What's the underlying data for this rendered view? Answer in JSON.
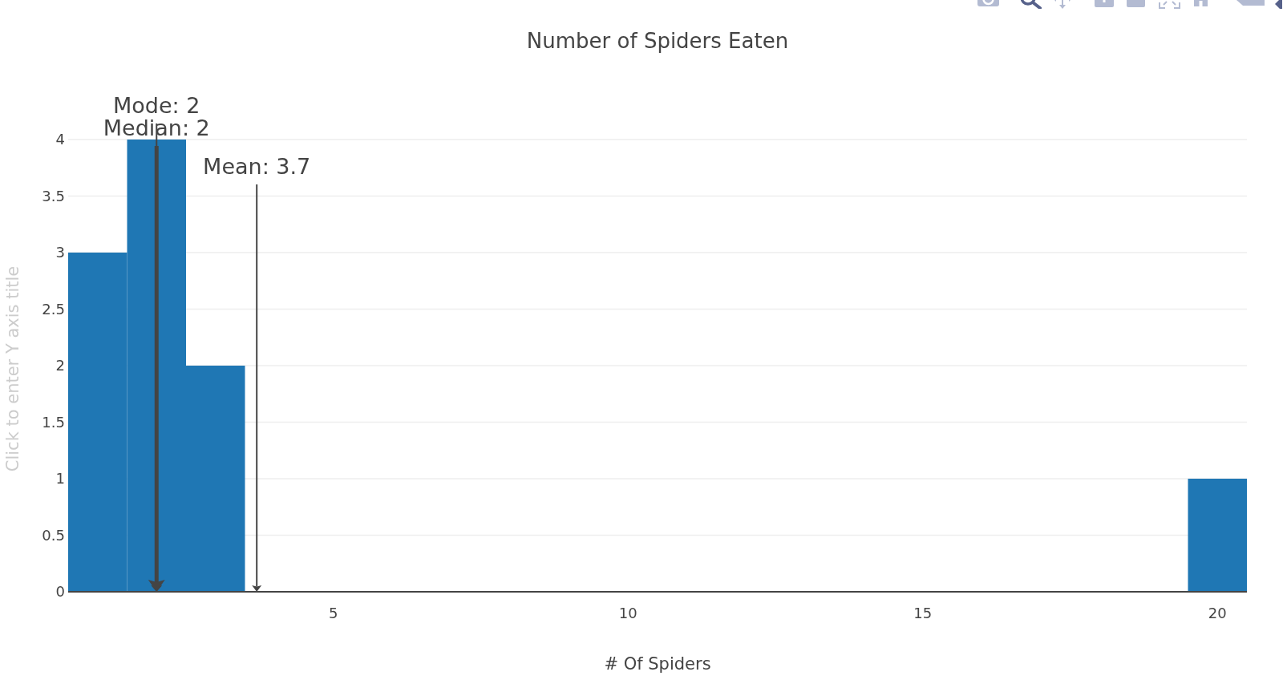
{
  "chart_data": {
    "type": "histogram",
    "title": "Number of Spiders Eaten",
    "xlabel": "# Of Spiders",
    "ylabel": "Click to enter Y axis title",
    "bins": [
      0.5,
      1.5,
      2.5,
      3.5,
      4.5,
      5.5,
      6.5,
      7.5,
      8.5,
      9.5,
      10.5,
      11.5,
      12.5,
      13.5,
      14.5,
      15.5,
      16.5,
      17.5,
      18.5,
      19.5,
      20.5
    ],
    "values": [
      3,
      4,
      2,
      0,
      0,
      0,
      0,
      0,
      0,
      0,
      0,
      0,
      0,
      0,
      0,
      0,
      0,
      0,
      0,
      1
    ],
    "color": "#1f77b4",
    "xlim": [
      0.5,
      20.5
    ],
    "xticks": [
      5,
      10,
      15,
      20
    ],
    "ylim": [
      0,
      4
    ],
    "yticks": [
      0,
      0.5,
      1,
      1.5,
      2,
      2.5,
      3,
      3.5,
      4
    ],
    "grid": "y",
    "ref_lines": [
      {
        "axis": "x",
        "value": 2,
        "label": "Mode: 2",
        "color": "#444444"
      },
      {
        "axis": "x",
        "value": 2,
        "label": "Median: 2",
        "color": "#444444"
      },
      {
        "axis": "x",
        "value": 3.7,
        "label": "Mean: 3.7",
        "color": "#444444"
      }
    ]
  }
}
